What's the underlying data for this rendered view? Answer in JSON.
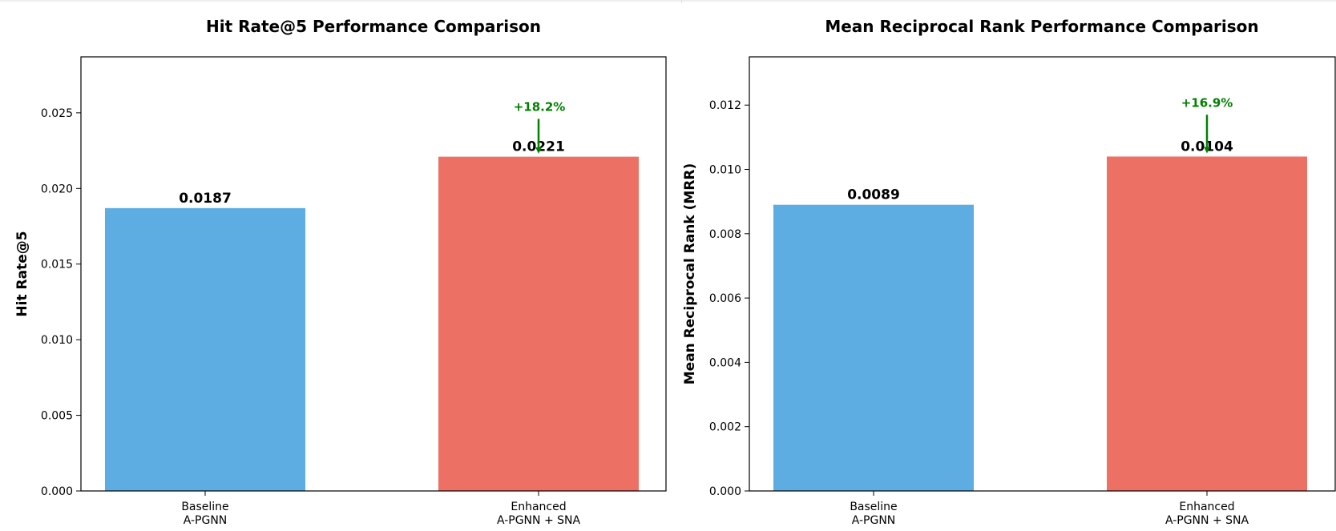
{
  "chart_data": [
    {
      "type": "bar",
      "title": "Hit Rate@5 Performance Comparison",
      "xlabel": "",
      "ylabel": "Hit Rate@5",
      "categories": [
        "Baseline\nA-PGNN",
        "Enhanced\nA-PGNN + SNA"
      ],
      "values": [
        0.0187,
        0.0221
      ],
      "value_labels": [
        "0.0187",
        "0.0221"
      ],
      "colors": [
        "#5dade2",
        "#ec7063"
      ],
      "ylim": [
        0,
        0.0287
      ],
      "yticks": [
        0.0,
        0.005,
        0.01,
        0.015,
        0.02,
        0.025
      ],
      "ytick_labels": [
        "0.000",
        "0.005",
        "0.010",
        "0.015",
        "0.020",
        "0.025"
      ],
      "annotation": {
        "text": "+18.2%",
        "color": "#008000",
        "arrow_from": 0.0246,
        "arrow_to": 0.0223
      },
      "grid": false
    },
    {
      "type": "bar",
      "title": "Mean Reciprocal Rank Performance Comparison",
      "xlabel": "",
      "ylabel": "Mean Reciprocal Rank (MRR)",
      "categories": [
        "Baseline\nA-PGNN",
        "Enhanced\nA-PGNN + SNA"
      ],
      "values": [
        0.0089,
        0.0104
      ],
      "value_labels": [
        "0.0089",
        "0.0104"
      ],
      "colors": [
        "#5dade2",
        "#ec7063"
      ],
      "ylim": [
        0,
        0.0135
      ],
      "yticks": [
        0.0,
        0.002,
        0.004,
        0.006,
        0.008,
        0.01,
        0.012
      ],
      "ytick_labels": [
        "0.000",
        "0.002",
        "0.004",
        "0.006",
        "0.008",
        "0.010",
        "0.012"
      ],
      "annotation": {
        "text": "+16.9%",
        "color": "#008000",
        "arrow_from": 0.0117,
        "arrow_to": 0.0105
      },
      "grid": false
    }
  ]
}
